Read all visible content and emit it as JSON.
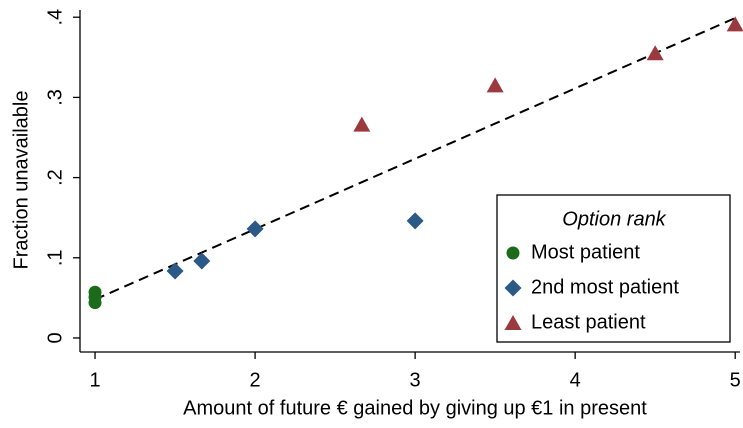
{
  "chart_data": {
    "type": "scatter",
    "xlabel": "Amount of future € gained by giving up €1 in present",
    "ylabel": "Fraction unavailable",
    "xlim": [
      0.906,
      5.03
    ],
    "ylim": [
      -0.0175,
      0.409
    ],
    "xticks": [
      1,
      2,
      3,
      4,
      5
    ],
    "yticks": [
      0,
      {
        "value": 0.1,
        "label": ".1"
      },
      {
        "value": 0.2,
        "label": ".2"
      },
      {
        "value": 0.3,
        "label": ".3"
      },
      {
        "value": 0.4,
        "label": ".4"
      }
    ],
    "legend_title": "Option rank",
    "legend": "lower right",
    "series": [
      {
        "name": "Most patient",
        "color": "#1b6b1b",
        "marker": "circle",
        "x": [
          1,
          1,
          1
        ],
        "values": [
          0.057,
          0.051,
          0.044
        ]
      },
      {
        "name": "2nd most patient",
        "color": "#2a5a85",
        "marker": "diamond",
        "x": [
          1.5,
          1.667,
          2,
          3
        ],
        "values": [
          0.0835,
          0.096,
          0.136,
          0.146
        ]
      },
      {
        "name": "Least patient",
        "color": "#9b3a3e",
        "marker": "triangle",
        "x": [
          2.667,
          3.5,
          4.5,
          5
        ],
        "values": [
          0.266,
          0.315,
          0.355,
          0.391
        ]
      }
    ],
    "fit_line": {
      "x": [
        1,
        5
      ],
      "values": [
        0.048,
        0.399
      ],
      "color": "#000000",
      "dashed": true
    }
  }
}
